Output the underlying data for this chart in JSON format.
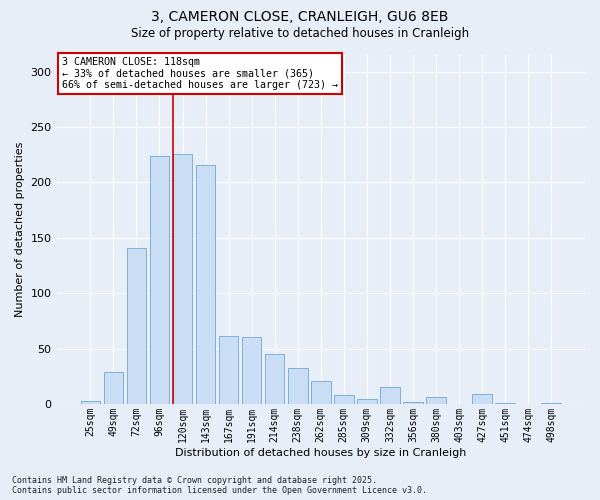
{
  "title_line1": "3, CAMERON CLOSE, CRANLEIGH, GU6 8EB",
  "title_line2": "Size of property relative to detached houses in Cranleigh",
  "xlabel": "Distribution of detached houses by size in Cranleigh",
  "ylabel": "Number of detached properties",
  "categories": [
    "25sqm",
    "49sqm",
    "72sqm",
    "96sqm",
    "120sqm",
    "143sqm",
    "167sqm",
    "191sqm",
    "214sqm",
    "238sqm",
    "262sqm",
    "285sqm",
    "309sqm",
    "332sqm",
    "356sqm",
    "380sqm",
    "403sqm",
    "427sqm",
    "451sqm",
    "474sqm",
    "498sqm"
  ],
  "values": [
    3,
    29,
    141,
    224,
    226,
    216,
    61,
    60,
    45,
    32,
    21,
    8,
    4,
    15,
    2,
    6,
    0,
    9,
    1,
    0,
    1
  ],
  "bar_color": "#c9ddf5",
  "bar_edge_color": "#6aaad4",
  "background_color": "#e8eef8",
  "grid_color": "#ffffff",
  "vline_color": "#cc0000",
  "vline_x_index": 4,
  "annotation_title": "3 CAMERON CLOSE: 118sqm",
  "annotation_line1": "← 33% of detached houses are smaller (365)",
  "annotation_line2": "66% of semi-detached houses are larger (723) →",
  "annotation_box_color": "#ffffff",
  "annotation_box_edge": "#cc0000",
  "footer_line1": "Contains HM Land Registry data © Crown copyright and database right 2025.",
  "footer_line2": "Contains public sector information licensed under the Open Government Licence v3.0.",
  "ylim": [
    0,
    315
  ],
  "yticks": [
    0,
    50,
    100,
    150,
    200,
    250,
    300
  ]
}
